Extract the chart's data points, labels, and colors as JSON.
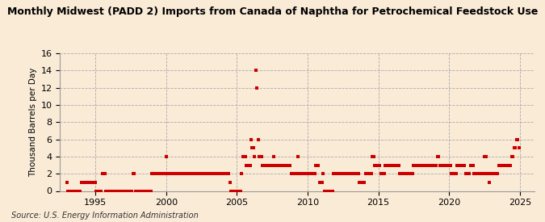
{
  "title": "Monthly Midwest (PADD 2) Imports from Canada of Naphtha for Petrochemical Feedstock Use",
  "ylabel": "Thousand Barrels per Day",
  "source": "Source: U.S. Energy Information Administration",
  "background_color": "#faebd7",
  "dot_color": "#cc0000",
  "grid_color": "#aaaaaa",
  "ylim": [
    0,
    16
  ],
  "yticks": [
    0,
    2,
    4,
    6,
    8,
    10,
    12,
    14,
    16
  ],
  "xlim_start": 1992.5,
  "xlim_end": 2026.0,
  "xticks": [
    1995,
    2000,
    2005,
    2010,
    2015,
    2020,
    2025
  ],
  "data": [
    [
      1993.0,
      1
    ],
    [
      1993.08,
      0
    ],
    [
      1993.17,
      0
    ],
    [
      1993.25,
      0
    ],
    [
      1993.33,
      0
    ],
    [
      1993.42,
      0
    ],
    [
      1993.5,
      0
    ],
    [
      1993.58,
      0
    ],
    [
      1993.67,
      0
    ],
    [
      1993.75,
      0
    ],
    [
      1993.83,
      0
    ],
    [
      1993.92,
      0
    ],
    [
      1994.0,
      1
    ],
    [
      1994.08,
      1
    ],
    [
      1994.17,
      1
    ],
    [
      1994.25,
      1
    ],
    [
      1994.33,
      1
    ],
    [
      1994.42,
      1
    ],
    [
      1994.5,
      1
    ],
    [
      1994.58,
      1
    ],
    [
      1994.67,
      1
    ],
    [
      1994.75,
      1
    ],
    [
      1994.83,
      1
    ],
    [
      1994.92,
      1
    ],
    [
      1995.0,
      1
    ],
    [
      1995.08,
      0
    ],
    [
      1995.17,
      0
    ],
    [
      1995.25,
      0
    ],
    [
      1995.33,
      0
    ],
    [
      1995.42,
      0
    ],
    [
      1995.5,
      2
    ],
    [
      1995.58,
      2
    ],
    [
      1995.67,
      2
    ],
    [
      1995.75,
      0
    ],
    [
      1995.83,
      0
    ],
    [
      1995.92,
      0
    ],
    [
      1996.0,
      0
    ],
    [
      1996.08,
      0
    ],
    [
      1996.17,
      0
    ],
    [
      1996.25,
      0
    ],
    [
      1996.33,
      0
    ],
    [
      1996.42,
      0
    ],
    [
      1996.5,
      0
    ],
    [
      1996.58,
      0
    ],
    [
      1996.67,
      0
    ],
    [
      1996.75,
      0
    ],
    [
      1996.83,
      0
    ],
    [
      1996.92,
      0
    ],
    [
      1997.0,
      0
    ],
    [
      1997.08,
      0
    ],
    [
      1997.17,
      0
    ],
    [
      1997.25,
      0
    ],
    [
      1997.33,
      0
    ],
    [
      1997.42,
      0
    ],
    [
      1997.5,
      0
    ],
    [
      1997.58,
      0
    ],
    [
      1997.67,
      2
    ],
    [
      1997.75,
      2
    ],
    [
      1997.83,
      0
    ],
    [
      1997.92,
      0
    ],
    [
      1998.0,
      0
    ],
    [
      1998.08,
      0
    ],
    [
      1998.17,
      0
    ],
    [
      1998.25,
      0
    ],
    [
      1998.33,
      0
    ],
    [
      1998.42,
      0
    ],
    [
      1998.5,
      0
    ],
    [
      1998.58,
      0
    ],
    [
      1998.67,
      0
    ],
    [
      1998.75,
      0
    ],
    [
      1998.83,
      0
    ],
    [
      1998.92,
      0
    ],
    [
      1999.0,
      2
    ],
    [
      1999.08,
      2
    ],
    [
      1999.17,
      2
    ],
    [
      1999.25,
      2
    ],
    [
      1999.33,
      2
    ],
    [
      1999.42,
      2
    ],
    [
      1999.5,
      2
    ],
    [
      1999.58,
      2
    ],
    [
      1999.67,
      2
    ],
    [
      1999.75,
      2
    ],
    [
      1999.83,
      2
    ],
    [
      1999.92,
      2
    ],
    [
      2000.0,
      4
    ],
    [
      2000.08,
      2
    ],
    [
      2000.17,
      2
    ],
    [
      2000.25,
      2
    ],
    [
      2000.33,
      2
    ],
    [
      2000.42,
      2
    ],
    [
      2000.5,
      2
    ],
    [
      2000.58,
      2
    ],
    [
      2000.67,
      2
    ],
    [
      2000.75,
      2
    ],
    [
      2000.83,
      2
    ],
    [
      2000.92,
      2
    ],
    [
      2001.0,
      2
    ],
    [
      2001.08,
      2
    ],
    [
      2001.17,
      2
    ],
    [
      2001.25,
      2
    ],
    [
      2001.33,
      2
    ],
    [
      2001.42,
      2
    ],
    [
      2001.5,
      2
    ],
    [
      2001.58,
      2
    ],
    [
      2001.67,
      2
    ],
    [
      2001.75,
      2
    ],
    [
      2001.83,
      2
    ],
    [
      2001.92,
      2
    ],
    [
      2002.0,
      2
    ],
    [
      2002.08,
      2
    ],
    [
      2002.17,
      2
    ],
    [
      2002.25,
      2
    ],
    [
      2002.33,
      2
    ],
    [
      2002.42,
      2
    ],
    [
      2002.5,
      2
    ],
    [
      2002.58,
      2
    ],
    [
      2002.67,
      2
    ],
    [
      2002.75,
      2
    ],
    [
      2002.83,
      2
    ],
    [
      2002.92,
      2
    ],
    [
      2003.0,
      2
    ],
    [
      2003.08,
      2
    ],
    [
      2003.17,
      2
    ],
    [
      2003.25,
      2
    ],
    [
      2003.33,
      2
    ],
    [
      2003.42,
      2
    ],
    [
      2003.5,
      2
    ],
    [
      2003.58,
      2
    ],
    [
      2003.67,
      2
    ],
    [
      2003.75,
      2
    ],
    [
      2003.83,
      2
    ],
    [
      2003.92,
      2
    ],
    [
      2004.0,
      2
    ],
    [
      2004.08,
      2
    ],
    [
      2004.17,
      2
    ],
    [
      2004.25,
      2
    ],
    [
      2004.33,
      2
    ],
    [
      2004.42,
      2
    ],
    [
      2004.5,
      1
    ],
    [
      2004.58,
      0
    ],
    [
      2004.67,
      0
    ],
    [
      2004.75,
      0
    ],
    [
      2004.83,
      0
    ],
    [
      2004.92,
      0
    ],
    [
      2005.0,
      0
    ],
    [
      2005.08,
      0
    ],
    [
      2005.17,
      0
    ],
    [
      2005.25,
      0
    ],
    [
      2005.33,
      2
    ],
    [
      2005.42,
      4
    ],
    [
      2005.5,
      4
    ],
    [
      2005.58,
      4
    ],
    [
      2005.67,
      3
    ],
    [
      2005.75,
      3
    ],
    [
      2005.83,
      3
    ],
    [
      2005.92,
      3
    ],
    [
      2006.0,
      6
    ],
    [
      2006.08,
      5
    ],
    [
      2006.17,
      5
    ],
    [
      2006.25,
      4
    ],
    [
      2006.33,
      14
    ],
    [
      2006.42,
      12
    ],
    [
      2006.5,
      6
    ],
    [
      2006.58,
      4
    ],
    [
      2006.67,
      4
    ],
    [
      2006.75,
      4
    ],
    [
      2006.83,
      3
    ],
    [
      2006.92,
      3
    ],
    [
      2007.0,
      3
    ],
    [
      2007.08,
      3
    ],
    [
      2007.17,
      3
    ],
    [
      2007.25,
      3
    ],
    [
      2007.33,
      3
    ],
    [
      2007.42,
      3
    ],
    [
      2007.5,
      3
    ],
    [
      2007.58,
      4
    ],
    [
      2007.67,
      3
    ],
    [
      2007.75,
      3
    ],
    [
      2007.83,
      3
    ],
    [
      2007.92,
      3
    ],
    [
      2008.0,
      3
    ],
    [
      2008.08,
      3
    ],
    [
      2008.17,
      3
    ],
    [
      2008.25,
      3
    ],
    [
      2008.33,
      3
    ],
    [
      2008.42,
      3
    ],
    [
      2008.5,
      3
    ],
    [
      2008.58,
      3
    ],
    [
      2008.67,
      3
    ],
    [
      2008.75,
      3
    ],
    [
      2008.83,
      2
    ],
    [
      2008.92,
      2
    ],
    [
      2009.0,
      2
    ],
    [
      2009.08,
      2
    ],
    [
      2009.17,
      2
    ],
    [
      2009.25,
      2
    ],
    [
      2009.33,
      4
    ],
    [
      2009.42,
      2
    ],
    [
      2009.5,
      2
    ],
    [
      2009.58,
      2
    ],
    [
      2009.67,
      2
    ],
    [
      2009.75,
      2
    ],
    [
      2009.83,
      2
    ],
    [
      2009.92,
      2
    ],
    [
      2010.0,
      2
    ],
    [
      2010.08,
      2
    ],
    [
      2010.17,
      2
    ],
    [
      2010.25,
      2
    ],
    [
      2010.33,
      2
    ],
    [
      2010.42,
      2
    ],
    [
      2010.5,
      2
    ],
    [
      2010.58,
      3
    ],
    [
      2010.67,
      3
    ],
    [
      2010.75,
      3
    ],
    [
      2010.83,
      1
    ],
    [
      2010.92,
      1
    ],
    [
      2011.0,
      1
    ],
    [
      2011.08,
      2
    ],
    [
      2011.17,
      0
    ],
    [
      2011.25,
      0
    ],
    [
      2011.33,
      0
    ],
    [
      2011.42,
      0
    ],
    [
      2011.5,
      0
    ],
    [
      2011.58,
      0
    ],
    [
      2011.67,
      0
    ],
    [
      2011.75,
      0
    ],
    [
      2011.83,
      2
    ],
    [
      2011.92,
      2
    ],
    [
      2012.0,
      2
    ],
    [
      2012.08,
      2
    ],
    [
      2012.17,
      2
    ],
    [
      2012.25,
      2
    ],
    [
      2012.33,
      2
    ],
    [
      2012.42,
      2
    ],
    [
      2012.5,
      2
    ],
    [
      2012.58,
      2
    ],
    [
      2012.67,
      2
    ],
    [
      2012.75,
      2
    ],
    [
      2012.83,
      2
    ],
    [
      2012.92,
      2
    ],
    [
      2013.0,
      2
    ],
    [
      2013.08,
      2
    ],
    [
      2013.17,
      2
    ],
    [
      2013.25,
      2
    ],
    [
      2013.33,
      2
    ],
    [
      2013.42,
      2
    ],
    [
      2013.5,
      2
    ],
    [
      2013.58,
      2
    ],
    [
      2013.67,
      1
    ],
    [
      2013.75,
      1
    ],
    [
      2013.83,
      1
    ],
    [
      2013.92,
      1
    ],
    [
      2014.0,
      1
    ],
    [
      2014.08,
      2
    ],
    [
      2014.17,
      2
    ],
    [
      2014.25,
      2
    ],
    [
      2014.33,
      2
    ],
    [
      2014.42,
      2
    ],
    [
      2014.5,
      2
    ],
    [
      2014.58,
      4
    ],
    [
      2014.67,
      4
    ],
    [
      2014.75,
      3
    ],
    [
      2014.83,
      3
    ],
    [
      2014.92,
      3
    ],
    [
      2015.0,
      3
    ],
    [
      2015.08,
      3
    ],
    [
      2015.17,
      2
    ],
    [
      2015.25,
      2
    ],
    [
      2015.33,
      2
    ],
    [
      2015.42,
      2
    ],
    [
      2015.5,
      3
    ],
    [
      2015.58,
      3
    ],
    [
      2015.67,
      3
    ],
    [
      2015.75,
      3
    ],
    [
      2015.83,
      3
    ],
    [
      2015.92,
      3
    ],
    [
      2016.0,
      3
    ],
    [
      2016.08,
      3
    ],
    [
      2016.17,
      3
    ],
    [
      2016.25,
      3
    ],
    [
      2016.33,
      3
    ],
    [
      2016.42,
      3
    ],
    [
      2016.5,
      2
    ],
    [
      2016.58,
      2
    ],
    [
      2016.67,
      2
    ],
    [
      2016.75,
      2
    ],
    [
      2016.83,
      2
    ],
    [
      2016.92,
      2
    ],
    [
      2017.0,
      2
    ],
    [
      2017.08,
      2
    ],
    [
      2017.17,
      2
    ],
    [
      2017.25,
      2
    ],
    [
      2017.33,
      2
    ],
    [
      2017.42,
      2
    ],
    [
      2017.5,
      3
    ],
    [
      2017.58,
      3
    ],
    [
      2017.67,
      3
    ],
    [
      2017.75,
      3
    ],
    [
      2017.83,
      3
    ],
    [
      2017.92,
      3
    ],
    [
      2018.0,
      3
    ],
    [
      2018.08,
      3
    ],
    [
      2018.17,
      3
    ],
    [
      2018.25,
      3
    ],
    [
      2018.33,
      3
    ],
    [
      2018.42,
      3
    ],
    [
      2018.5,
      3
    ],
    [
      2018.58,
      3
    ],
    [
      2018.67,
      3
    ],
    [
      2018.75,
      3
    ],
    [
      2018.83,
      3
    ],
    [
      2018.92,
      3
    ],
    [
      2019.0,
      3
    ],
    [
      2019.08,
      3
    ],
    [
      2019.17,
      4
    ],
    [
      2019.25,
      4
    ],
    [
      2019.33,
      3
    ],
    [
      2019.42,
      3
    ],
    [
      2019.5,
      3
    ],
    [
      2019.58,
      3
    ],
    [
      2019.67,
      3
    ],
    [
      2019.75,
      3
    ],
    [
      2019.83,
      3
    ],
    [
      2019.92,
      3
    ],
    [
      2020.0,
      3
    ],
    [
      2020.08,
      3
    ],
    [
      2020.17,
      2
    ],
    [
      2020.25,
      2
    ],
    [
      2020.33,
      2
    ],
    [
      2020.42,
      2
    ],
    [
      2020.5,
      2
    ],
    [
      2020.58,
      3
    ],
    [
      2020.67,
      3
    ],
    [
      2020.75,
      3
    ],
    [
      2020.83,
      3
    ],
    [
      2020.92,
      3
    ],
    [
      2021.0,
      3
    ],
    [
      2021.08,
      3
    ],
    [
      2021.17,
      2
    ],
    [
      2021.25,
      2
    ],
    [
      2021.33,
      2
    ],
    [
      2021.42,
      2
    ],
    [
      2021.5,
      3
    ],
    [
      2021.58,
      3
    ],
    [
      2021.67,
      3
    ],
    [
      2021.75,
      2
    ],
    [
      2021.83,
      2
    ],
    [
      2021.92,
      2
    ],
    [
      2022.0,
      2
    ],
    [
      2022.08,
      2
    ],
    [
      2022.17,
      2
    ],
    [
      2022.25,
      2
    ],
    [
      2022.33,
      2
    ],
    [
      2022.42,
      2
    ],
    [
      2022.5,
      4
    ],
    [
      2022.58,
      4
    ],
    [
      2022.67,
      2
    ],
    [
      2022.75,
      2
    ],
    [
      2022.83,
      1
    ],
    [
      2022.92,
      2
    ],
    [
      2023.0,
      2
    ],
    [
      2023.08,
      2
    ],
    [
      2023.17,
      2
    ],
    [
      2023.25,
      2
    ],
    [
      2023.33,
      2
    ],
    [
      2023.42,
      2
    ],
    [
      2023.5,
      3
    ],
    [
      2023.58,
      3
    ],
    [
      2023.67,
      3
    ],
    [
      2023.75,
      3
    ],
    [
      2023.83,
      3
    ],
    [
      2023.92,
      3
    ],
    [
      2024.0,
      3
    ],
    [
      2024.08,
      3
    ],
    [
      2024.17,
      3
    ],
    [
      2024.25,
      3
    ],
    [
      2024.33,
      3
    ],
    [
      2024.42,
      4
    ],
    [
      2024.5,
      4
    ],
    [
      2024.58,
      5
    ],
    [
      2024.67,
      5
    ],
    [
      2024.75,
      6
    ],
    [
      2024.83,
      6
    ],
    [
      2024.92,
      5
    ]
  ]
}
